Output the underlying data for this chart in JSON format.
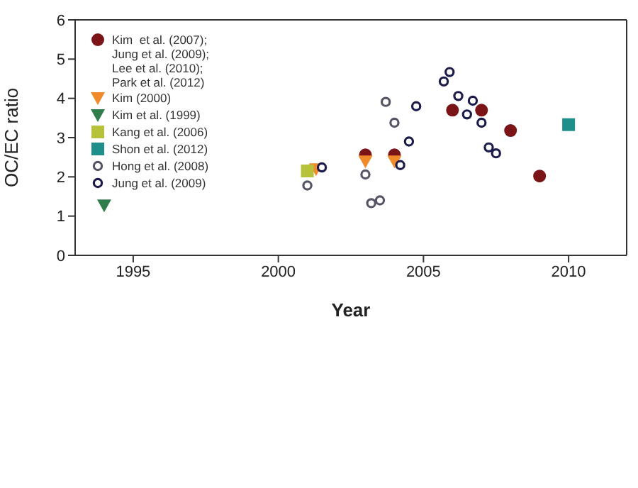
{
  "chart_data": {
    "type": "scatter",
    "xlabel": "Year",
    "ylabel": "OC/EC ratio",
    "xlim": [
      1993,
      2012
    ],
    "xticks": [
      1995,
      2000,
      2005,
      2010
    ],
    "ylim": [
      0,
      6
    ],
    "yticks": [
      0,
      1,
      2,
      3,
      4,
      5,
      6
    ],
    "legend": "top left",
    "series": [
      {
        "name": "Kim  et al. (2007);\nJung et al. (2009);\nLee et al. (2010);\nPark et al. (2012)",
        "color": "#7b1416",
        "marker": "circle",
        "x": [
          2003,
          2004,
          2006,
          2007,
          2008,
          2009
        ],
        "values": [
          2.56,
          2.56,
          3.7,
          3.7,
          3.18,
          2.02
        ]
      },
      {
        "name": "Kim (2000)",
        "color": "#f08a2a",
        "marker": "triangle",
        "x": [
          2001.3,
          2003,
          2004
        ],
        "values": [
          2.2,
          2.4,
          2.4
        ]
      },
      {
        "name": "Kim et al. (1999)",
        "color": "#2e7d4a",
        "marker": "triangle",
        "x": [
          1994
        ],
        "values": [
          1.28
        ]
      },
      {
        "name": "Kang et al. (2006)",
        "color": "#b5c23a",
        "marker": "square",
        "x": [
          2001
        ],
        "values": [
          2.15
        ]
      },
      {
        "name": "Shon et al. (2012)",
        "color": "#1f8f8c",
        "marker": "square",
        "x": [
          2010
        ],
        "values": [
          3.33
        ]
      },
      {
        "name": "Hong et al. (2008)",
        "color": "#555566",
        "marker": "circle-open",
        "x": [
          2001,
          2003,
          2003.2,
          2003.5,
          2003.7,
          2004
        ],
        "values": [
          1.78,
          2.06,
          1.33,
          1.4,
          3.91,
          3.38
        ]
      },
      {
        "name": "Jung et al. (2009)",
        "color": "#1c1c4a",
        "marker": "circle-open",
        "x": [
          2001.5,
          2004.2,
          2004.5,
          2004.75,
          2005.7,
          2005.9,
          2006.2,
          2006.5,
          2006.7,
          2007,
          2007.25,
          2007.5
        ],
        "values": [
          2.24,
          2.3,
          2.9,
          3.8,
          4.43,
          4.67,
          4.06,
          3.59,
          3.94,
          3.38,
          2.75,
          2.6
        ]
      }
    ]
  }
}
